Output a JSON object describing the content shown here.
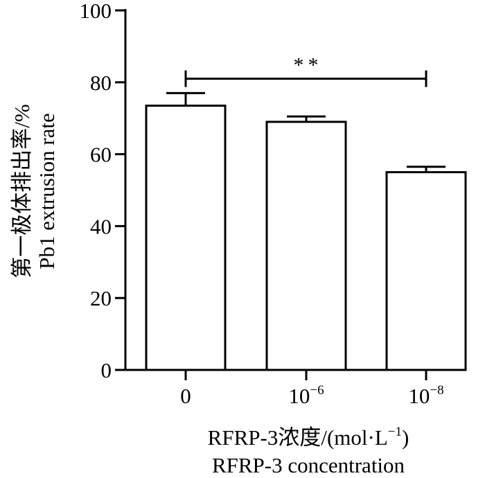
{
  "chart_data": {
    "type": "bar",
    "categories": [
      {
        "base": "0",
        "exp": ""
      },
      {
        "base": "10",
        "exp": "−6"
      },
      {
        "base": "10",
        "exp": "−8"
      }
    ],
    "values": [
      73.5,
      69,
      55
    ],
    "errors": [
      3.5,
      1.5,
      1.5
    ],
    "ylim": [
      0,
      100
    ],
    "yticks": [
      "0",
      "20",
      "40",
      "60",
      "80",
      "100"
    ],
    "ytick_values": [
      0,
      20,
      40,
      60,
      80,
      100
    ],
    "ylabel": {
      "line1": "第一极体排出率/%",
      "line2": "Pb1 extrusion rate"
    },
    "xlabel": {
      "line1_pre": "RFRP-3浓度/(mol·L",
      "line1_exp": "−1",
      "line1_post": ")",
      "line2": "RFRP-3 concentration"
    },
    "significance": {
      "from": 0,
      "to": 2,
      "label": "**",
      "y": 81
    },
    "grid": false,
    "legend": "none",
    "colors": {
      "bar_fill": "#ffffff",
      "stroke": "#000000"
    }
  }
}
